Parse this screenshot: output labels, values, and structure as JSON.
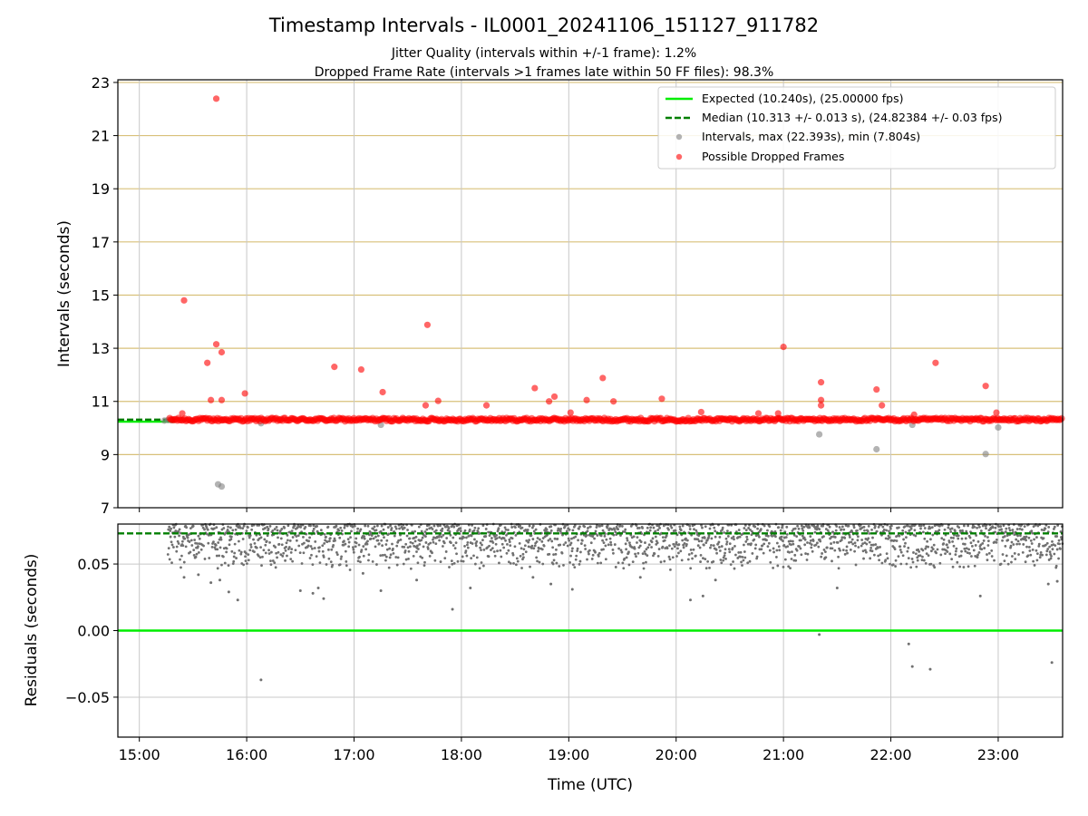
{
  "figure": {
    "title": "Timestamp Intervals - IL0001_20241106_151127_911782",
    "subtitle_1": "Jitter Quality (intervals within +/-1 frame): 1.2%",
    "subtitle_2": "Dropped Frame Rate (intervals >1 frames late within 50 FF files): 98.3%",
    "xlabel": "Time (UTC)"
  },
  "colors": {
    "expected": "#00ee00",
    "median": "#007f00",
    "intervals": "#808080",
    "dropped": "#ff0000",
    "hgrid_top": "#d8c07a",
    "grid": "#c8c8c8",
    "residual_points": "#707070"
  },
  "legend": {
    "expected": "Expected (10.240s), (25.00000 fps)",
    "median": "Median (10.313 +/- 0.013 s), (24.82384 +/- 0.03 fps)",
    "intervals": "Intervals, max (22.393s), min (7.804s)",
    "dropped": "Possible Dropped Frames"
  },
  "chart_data": [
    {
      "type": "scatter",
      "ylabel": "Intervals (seconds)",
      "xlim": [
        "14:48",
        "23:36"
      ],
      "ylim": [
        7,
        23.1
      ],
      "yticks": [
        "7",
        "9",
        "11",
        "13",
        "15",
        "17",
        "19",
        "21",
        "23"
      ],
      "grid": true,
      "legend_position": "top-right",
      "expected_line": {
        "y": 10.24,
        "x_end": "15:20"
      },
      "median_line": {
        "y": 10.313,
        "x_end": "15:20"
      },
      "dense_band": {
        "y": 10.313,
        "x_start": "15:17",
        "x_end": "23:36"
      },
      "intervals": [
        [
          "15:14",
          10.28
        ],
        [
          "15:16",
          10.3
        ],
        [
          "15:18",
          10.29
        ],
        [
          "15:44",
          7.88
        ],
        [
          "15:46",
          7.8
        ],
        [
          "16:08",
          10.18
        ],
        [
          "17:15",
          10.12
        ],
        [
          "21:20",
          9.76
        ],
        [
          "21:52",
          9.2
        ],
        [
          "22:12",
          10.12
        ],
        [
          "22:53",
          9.02
        ],
        [
          "23:00",
          10.02
        ]
      ],
      "dropped_frames": [
        [
          "15:24",
          10.55
        ],
        [
          "15:25",
          14.8
        ],
        [
          "15:38",
          12.45
        ],
        [
          "15:40",
          11.05
        ],
        [
          "15:43",
          22.39
        ],
        [
          "15:43",
          13.15
        ],
        [
          "15:46",
          12.85
        ],
        [
          "15:46",
          11.05
        ],
        [
          "15:59",
          11.3
        ],
        [
          "16:49",
          12.3
        ],
        [
          "17:04",
          12.2
        ],
        [
          "17:16",
          11.35
        ],
        [
          "17:40",
          10.85
        ],
        [
          "17:41",
          13.88
        ],
        [
          "17:47",
          11.02
        ],
        [
          "18:14",
          10.85
        ],
        [
          "18:41",
          11.5
        ],
        [
          "18:49",
          11.0
        ],
        [
          "18:52",
          11.18
        ],
        [
          "19:01",
          10.58
        ],
        [
          "19:10",
          11.05
        ],
        [
          "19:19",
          11.88
        ],
        [
          "19:25",
          11.0
        ],
        [
          "19:52",
          11.1
        ],
        [
          "20:14",
          10.6
        ],
        [
          "20:46",
          10.55
        ],
        [
          "20:57",
          10.55
        ],
        [
          "21:00",
          13.05
        ],
        [
          "21:21",
          11.72
        ],
        [
          "21:21",
          11.05
        ],
        [
          "21:21",
          10.85
        ],
        [
          "21:52",
          11.45
        ],
        [
          "21:55",
          10.85
        ],
        [
          "22:13",
          10.5
        ],
        [
          "22:25",
          12.45
        ],
        [
          "22:53",
          11.58
        ],
        [
          "22:59",
          10.58
        ]
      ]
    },
    {
      "type": "scatter",
      "ylabel": "Residuals (seconds)",
      "xlim": [
        "14:48",
        "23:36"
      ],
      "ylim": [
        -0.08,
        0.08
      ],
      "yticks": [
        "−0.05",
        "0.00",
        "0.05"
      ],
      "xticks": [
        "15:00",
        "16:00",
        "17:00",
        "18:00",
        "19:00",
        "20:00",
        "21:00",
        "22:00",
        "23:00"
      ],
      "grid": true,
      "expected_line": {
        "y": 0.0
      },
      "median_line": {
        "y": 0.073
      },
      "residual_band": {
        "y_min": 0.045,
        "y_max": 0.08,
        "x_start": "15:16",
        "x_end": "23:36"
      },
      "residual_outliers": [
        [
          "15:25",
          0.04
        ],
        [
          "15:33",
          0.042
        ],
        [
          "15:40",
          0.036
        ],
        [
          "15:45",
          0.038
        ],
        [
          "15:50",
          0.029
        ],
        [
          "15:55",
          0.023
        ],
        [
          "16:08",
          -0.037
        ],
        [
          "16:30",
          0.03
        ],
        [
          "16:37",
          0.028
        ],
        [
          "16:40",
          0.032
        ],
        [
          "16:43",
          0.024
        ],
        [
          "17:05",
          0.043
        ],
        [
          "17:15",
          0.03
        ],
        [
          "17:35",
          0.038
        ],
        [
          "17:55",
          0.016
        ],
        [
          "18:05",
          0.032
        ],
        [
          "18:40",
          0.04
        ],
        [
          "18:50",
          0.035
        ],
        [
          "19:02",
          0.031
        ],
        [
          "19:40",
          0.04
        ],
        [
          "20:08",
          0.023
        ],
        [
          "20:15",
          0.026
        ],
        [
          "20:22",
          0.038
        ],
        [
          "21:20",
          -0.003
        ],
        [
          "21:30",
          0.032
        ],
        [
          "22:10",
          -0.01
        ],
        [
          "22:12",
          -0.027
        ],
        [
          "22:22",
          -0.029
        ],
        [
          "22:50",
          0.026
        ],
        [
          "23:30",
          -0.024
        ],
        [
          "23:28",
          0.035
        ],
        [
          "23:33",
          0.037
        ]
      ]
    }
  ]
}
